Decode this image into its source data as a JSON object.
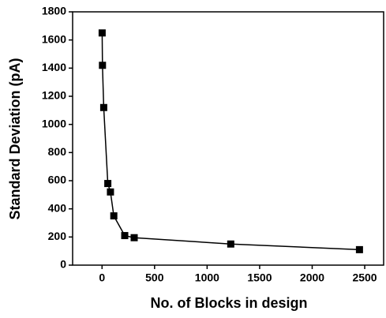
{
  "chart_data": {
    "type": "line",
    "x_label": "No. of Blocks in design",
    "y_label": "Standard Deviation (pA)",
    "series": [
      {
        "name": "Standard Deviation",
        "color": "#000000",
        "x": [
          1,
          4,
          16,
          55,
          80,
          112,
          216,
          306,
          1225,
          2450
        ],
        "values": [
          1650,
          1420,
          1120,
          580,
          520,
          350,
          210,
          195,
          150,
          110
        ]
      }
    ],
    "xlim": [
      -280,
      2680
    ],
    "xticks": [
      0,
      500,
      1000,
      1500,
      2000,
      2500
    ],
    "ylim": [
      0,
      1800
    ],
    "yticks": [
      0,
      200,
      400,
      600,
      800,
      1000,
      1200,
      1400,
      1600,
      1800
    ],
    "grid": false,
    "marker": "square"
  }
}
